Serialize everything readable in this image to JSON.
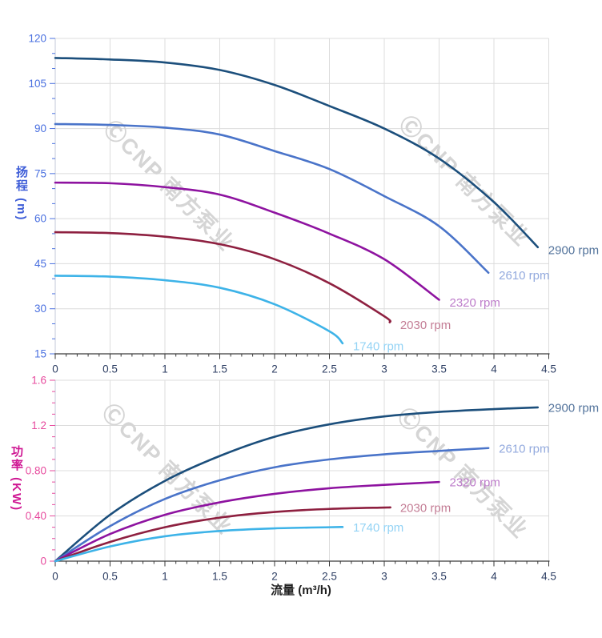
{
  "watermark": {
    "text": "ⒸCNP 南方泵业",
    "color": "#d5d5d5"
  },
  "x_axis": {
    "title": "流量 (m³/h)",
    "title_color": "#1f1f1f",
    "min": 0,
    "max": 4.5,
    "major_step": 0.5,
    "minor_step": 0.1,
    "tick_labels": [
      "0",
      "0.5",
      "1",
      "1.5",
      "2",
      "2.5",
      "3",
      "3.5",
      "4",
      "4.5"
    ],
    "tick_label_color": "#2d3e63",
    "axis_color": "#3a3a3a"
  },
  "chart_data": [
    {
      "type": "line",
      "id": "head-curve-chart",
      "y_axis": {
        "title": "扬程 (m)",
        "title_color": "#3f5ed8",
        "min": 15,
        "max": 120,
        "major_step": 15,
        "minor_step": 5,
        "tick_labels": [
          "15",
          "30",
          "45",
          "60",
          "75",
          "90",
          "105",
          "120"
        ],
        "tick_label_color": "#4a70e0"
      },
      "grid": true,
      "legend_position": "end-of-line",
      "series": [
        {
          "name": "2900 rpm",
          "color": "#1c4f7c",
          "label_color": "#54749c",
          "x": [
            0,
            0.5,
            1,
            1.5,
            2,
            2.5,
            3,
            3.5,
            4,
            4.4
          ],
          "y": [
            113.5,
            113,
            112,
            109.5,
            104.5,
            97.5,
            90,
            80,
            65.5,
            50.5
          ]
        },
        {
          "name": "2610 rpm",
          "color": "#4a74c9",
          "label_color": "#93aade",
          "x": [
            0,
            0.5,
            1,
            1.5,
            2,
            2.5,
            3,
            3.5,
            3.95
          ],
          "y": [
            91.5,
            91.2,
            90.3,
            88,
            82.5,
            76.5,
            67.5,
            57.5,
            42
          ]
        },
        {
          "name": "2320 rpm",
          "color": "#8e13a0",
          "label_color": "#bd7cca",
          "x": [
            0,
            0.5,
            1,
            1.5,
            2,
            2.5,
            3,
            3.5
          ],
          "y": [
            72,
            71.8,
            70.5,
            68,
            62,
            55,
            46.5,
            33
          ]
        },
        {
          "name": "2030 rpm",
          "color": "#8e2040",
          "label_color": "#c47e96",
          "x": [
            0,
            0.5,
            1,
            1.5,
            2,
            2.5,
            3,
            3.05
          ],
          "y": [
            55.5,
            55.2,
            54,
            51.5,
            46.5,
            38.5,
            27.5,
            25.5
          ]
        },
        {
          "name": "1740 rpm",
          "color": "#3db3e8",
          "label_color": "#93d3f5",
          "x": [
            0,
            0.5,
            1,
            1.5,
            2,
            2.5,
            2.62
          ],
          "y": [
            41,
            40.7,
            39.5,
            37,
            31.5,
            22.5,
            18.5
          ]
        }
      ]
    },
    {
      "type": "line",
      "id": "power-curve-chart",
      "y_axis": {
        "title": "功率 (KW)",
        "title_color": "#cf1793",
        "min": 0,
        "max": 1.6,
        "major_step": 0.4,
        "minor_step": 0.1,
        "tick_labels": [
          "0",
          "0.40",
          "0.80",
          "1.2",
          "1.6"
        ],
        "tick_label_color": "#e74b9e"
      },
      "grid": true,
      "legend_position": "end-of-line",
      "series": [
        {
          "name": "2900 rpm",
          "color": "#1c4f7c",
          "label_color": "#54749c",
          "x": [
            0,
            0.5,
            1,
            1.5,
            2,
            2.5,
            3,
            3.5,
            4,
            4.4
          ],
          "y": [
            0,
            0.41,
            0.71,
            0.93,
            1.1,
            1.21,
            1.28,
            1.32,
            1.345,
            1.36
          ]
        },
        {
          "name": "2610 rpm",
          "color": "#4a74c9",
          "label_color": "#93aade",
          "x": [
            0,
            0.5,
            1,
            1.5,
            2,
            2.5,
            3,
            3.5,
            3.95
          ],
          "y": [
            0,
            0.31,
            0.55,
            0.715,
            0.83,
            0.9,
            0.945,
            0.975,
            1.0
          ]
        },
        {
          "name": "2320 rpm",
          "color": "#8e13a0",
          "label_color": "#bd7cca",
          "x": [
            0,
            0.5,
            1,
            1.5,
            2,
            2.5,
            3,
            3.5
          ],
          "y": [
            0,
            0.24,
            0.41,
            0.52,
            0.595,
            0.645,
            0.675,
            0.7
          ]
        },
        {
          "name": "2030 rpm",
          "color": "#8e2040",
          "label_color": "#c47e96",
          "x": [
            0,
            0.5,
            1,
            1.5,
            2,
            2.5,
            3,
            3.05
          ],
          "y": [
            0,
            0.17,
            0.3,
            0.385,
            0.435,
            0.462,
            0.474,
            0.475
          ]
        },
        {
          "name": "1740 rpm",
          "color": "#3db3e8",
          "label_color": "#93d3f5",
          "x": [
            0,
            0.5,
            1,
            1.5,
            2,
            2.5,
            2.62
          ],
          "y": [
            0,
            0.13,
            0.22,
            0.267,
            0.29,
            0.3,
            0.302
          ]
        }
      ]
    }
  ]
}
